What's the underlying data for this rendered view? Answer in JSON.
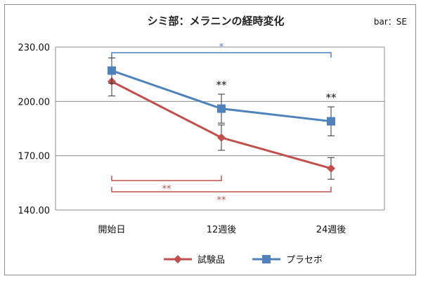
{
  "chart_data": {
    "type": "line",
    "title": "シミ部：メラニンの経時変化",
    "note": "bar：SE",
    "categories": [
      "開始日",
      "12週後",
      "24週後"
    ],
    "ylim": [
      140,
      230
    ],
    "yticks": [
      "140.00",
      "170.00",
      "200.00",
      "230.00"
    ],
    "ytick_values": [
      140,
      170,
      200,
      230
    ],
    "grid": true,
    "legend_position": "bottom",
    "series": [
      {
        "name": "試験品",
        "values": [
          211,
          180,
          163
        ],
        "errors": [
          8,
          7,
          6
        ],
        "color": "#c0504d",
        "marker": "diamond"
      },
      {
        "name": "プラセボ",
        "values": [
          217,
          196,
          189
        ],
        "errors": [
          7,
          8,
          8
        ],
        "color": "#4f81bd",
        "marker": "square"
      }
    ],
    "annotations": {
      "point_sig": [
        {
          "category_index": 1,
          "text": "**"
        },
        {
          "category_index": 2,
          "text": "**"
        }
      ],
      "brackets": [
        {
          "from": 0,
          "to": 2,
          "text": "*",
          "color": "#4f81bd",
          "position": "top"
        },
        {
          "from": 0,
          "to": 1,
          "text": "**",
          "color": "#c0504d",
          "position": "bottom-1"
        },
        {
          "from": 0,
          "to": 2,
          "text": "**",
          "color": "#c0504d",
          "position": "bottom-2"
        }
      ]
    }
  }
}
